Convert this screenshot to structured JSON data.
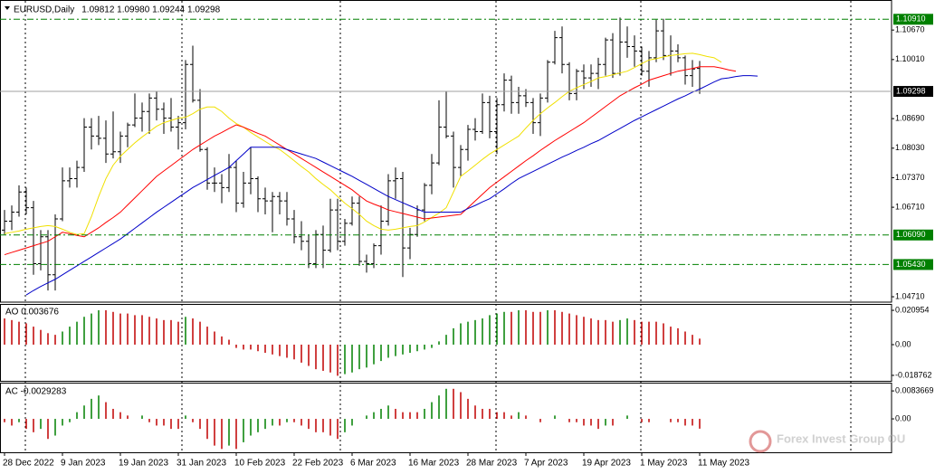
{
  "chart_data": [
    {
      "type": "ohlc",
      "title": "EURUSD,Daily",
      "subtitle": "1.09812 1.09980 1.09244 1.09298",
      "categories": [
        "28 Dec 2022",
        null,
        null,
        null,
        null,
        null,
        null,
        null,
        "9 Jan 2023",
        null,
        null,
        null,
        null,
        null,
        null,
        null,
        "19 Jan 2023",
        null,
        null,
        null,
        null,
        null,
        null,
        null,
        "31 Jan 2023",
        null,
        null,
        null,
        null,
        null,
        null,
        null,
        "10 Feb 2023",
        null,
        null,
        null,
        null,
        null,
        null,
        null,
        "22 Feb 2023",
        null,
        null,
        null,
        null,
        null,
        null,
        null,
        "6 Mar 2023",
        null,
        null,
        null,
        null,
        null,
        null,
        null,
        "16 Mar 2023",
        null,
        null,
        null,
        null,
        null,
        null,
        null,
        "28 Mar 2023",
        null,
        null,
        null,
        null,
        null,
        null,
        null,
        "7 Apr 2023",
        null,
        null,
        null,
        null,
        null,
        null,
        null,
        "19 Apr 2023",
        null,
        null,
        null,
        null,
        null,
        null,
        null,
        "1 May 2023",
        null,
        null,
        null,
        null,
        null,
        null,
        null,
        "11 May 2023",
        null,
        null,
        null,
        null,
        null,
        null,
        null,
        null
      ],
      "open": [
        1.062,
        1.064,
        1.066,
        1.0705,
        1.067,
        1.0545,
        1.0605,
        1.052,
        1.0645,
        1.073,
        1.0735,
        1.076,
        1.085,
        1.083,
        1.0825,
        1.079,
        1.0795,
        1.083,
        1.0855,
        1.087,
        1.0885,
        1.0915,
        1.089,
        1.087,
        1.085,
        1.086,
        1.099,
        1.091,
        1.08,
        1.0725,
        1.0725,
        1.0715,
        1.076,
        1.068,
        1.0725,
        1.0735,
        1.069,
        1.0685,
        1.0695,
        1.0685,
        1.0645,
        1.0605,
        1.0595,
        1.0545,
        1.061,
        1.0575,
        1.0665,
        1.0595,
        1.0635,
        1.068,
        1.055,
        1.0545,
        1.0585,
        1.064,
        1.073,
        1.0735,
        1.058,
        1.061,
        1.0665,
        1.072,
        1.077,
        1.085,
        1.083,
        1.076,
        1.08,
        1.0845,
        1.084,
        1.0905,
        1.084,
        1.09,
        1.0955,
        1.0905,
        1.092,
        1.0905,
        1.086,
        1.0915,
        1.0995,
        1.105,
        1.099,
        1.0925,
        1.0975,
        1.096,
        1.097,
        1.099,
        1.1045,
        1.097,
        1.104,
        1.103,
        1.102,
        1.0975,
        1.1005,
        1.1065,
        1.101,
        1.102,
        1.1005,
        1.0965,
        1.09812,
        null,
        null,
        null,
        null,
        null,
        null,
        null,
        null
      ],
      "high": [
        1.0665,
        1.0675,
        1.072,
        1.0715,
        1.0685,
        1.062,
        1.062,
        1.0655,
        1.076,
        1.076,
        1.0775,
        1.087,
        1.087,
        1.0875,
        1.0865,
        1.0885,
        1.084,
        1.086,
        1.0925,
        1.0905,
        1.0925,
        1.093,
        1.0905,
        1.0915,
        1.0875,
        1.1,
        1.1032,
        1.0935,
        1.0805,
        1.076,
        1.0745,
        1.079,
        1.0775,
        1.075,
        1.0805,
        1.074,
        1.0715,
        1.0705,
        1.0705,
        1.0705,
        1.0665,
        1.064,
        1.061,
        1.062,
        1.063,
        1.069,
        1.069,
        1.0645,
        1.0695,
        1.0695,
        1.0565,
        1.059,
        1.0675,
        1.0745,
        1.076,
        1.075,
        1.0625,
        1.0675,
        1.0725,
        1.079,
        1.091,
        1.093,
        1.084,
        1.081,
        1.0855,
        1.087,
        1.0925,
        1.092,
        1.0915,
        1.097,
        1.0965,
        1.094,
        1.0935,
        1.0915,
        1.0925,
        1.1,
        1.1065,
        1.1075,
        1.0995,
        1.098,
        1.099,
        1.099,
        1.1005,
        1.105,
        1.106,
        1.1095,
        1.1075,
        1.1055,
        1.103,
        1.102,
        1.109,
        1.1092,
        1.1055,
        1.1035,
        1.101,
        1.1,
        1.0998,
        null,
        null,
        null,
        null,
        null,
        null,
        null,
        null
      ],
      "low": [
        1.061,
        1.062,
        1.065,
        1.0655,
        1.052,
        1.053,
        1.0485,
        1.0485,
        1.064,
        1.0715,
        1.0715,
        1.075,
        1.08,
        1.081,
        1.077,
        1.078,
        1.077,
        1.0805,
        1.085,
        1.084,
        1.0835,
        1.0865,
        1.0835,
        1.084,
        1.08,
        1.0845,
        1.0905,
        1.0795,
        1.071,
        1.0705,
        1.068,
        1.0705,
        1.066,
        1.067,
        1.07,
        1.066,
        1.0655,
        1.0615,
        1.0655,
        1.063,
        1.059,
        1.0575,
        1.0535,
        1.0535,
        1.0535,
        1.057,
        1.0575,
        1.0585,
        1.063,
        1.054,
        1.0525,
        1.0535,
        1.0565,
        1.063,
        1.069,
        1.0515,
        1.0555,
        1.0605,
        1.064,
        1.07,
        1.0765,
        1.0825,
        1.0715,
        1.074,
        1.0775,
        1.082,
        1.0835,
        1.0825,
        1.079,
        1.0885,
        1.088,
        1.088,
        1.0895,
        1.0835,
        1.083,
        1.0905,
        1.099,
        1.097,
        1.091,
        1.091,
        1.0935,
        1.094,
        1.0935,
        1.0965,
        1.096,
        1.0965,
        1.1005,
        1.0985,
        1.0965,
        1.094,
        1.0995,
        1.1,
        1.0965,
        1.0995,
        1.0945,
        1.094,
        1.09244,
        null,
        null,
        null,
        null,
        null,
        null,
        null,
        null
      ],
      "close": [
        1.064,
        1.066,
        1.0705,
        1.067,
        1.0545,
        1.0605,
        1.052,
        1.0645,
        1.073,
        1.0735,
        1.076,
        1.085,
        1.083,
        1.0825,
        1.079,
        1.0795,
        1.083,
        1.0855,
        1.087,
        1.0885,
        1.0915,
        1.089,
        1.087,
        1.085,
        1.086,
        1.099,
        1.091,
        1.08,
        1.0725,
        1.0725,
        1.0715,
        1.076,
        1.068,
        1.0725,
        1.0735,
        1.069,
        1.0685,
        1.0695,
        1.0685,
        1.0645,
        1.0605,
        1.0595,
        1.0545,
        1.061,
        1.0575,
        1.0665,
        1.0595,
        1.0635,
        1.068,
        1.055,
        1.0545,
        1.0585,
        1.064,
        1.073,
        1.0735,
        1.058,
        1.061,
        1.0665,
        1.072,
        1.077,
        1.085,
        1.083,
        1.076,
        1.08,
        1.0845,
        1.084,
        1.0905,
        1.084,
        1.09,
        1.0955,
        1.0905,
        1.092,
        1.0905,
        1.086,
        1.0915,
        1.0995,
        1.105,
        1.099,
        1.0925,
        1.0975,
        1.096,
        1.097,
        1.099,
        1.1045,
        1.097,
        1.104,
        1.103,
        1.102,
        1.0975,
        1.1005,
        1.1065,
        1.101,
        1.102,
        1.1005,
        1.0965,
        1.098,
        1.09298,
        null,
        null,
        null,
        null,
        null,
        null,
        null,
        null
      ],
      "color": "#000000",
      "lines": [
        {
          "color": "#f0e000",
          "values": [
            1.0612,
            1.0615,
            1.0618,
            1.0622,
            1.0625,
            1.0628,
            1.063,
            1.0628,
            1.0622,
            1.0615,
            1.061,
            1.0612,
            1.065,
            1.0695,
            1.0735,
            1.0765,
            1.0785,
            1.08,
            1.0815,
            1.0828,
            1.084,
            1.0852,
            1.086,
            1.0865,
            1.087,
            1.0872,
            1.088,
            1.089,
            1.0895,
            1.0895,
            1.0885,
            1.087,
            1.0858,
            1.085,
            1.0838,
            1.0828,
            1.0818,
            1.0808,
            1.08,
            1.0788,
            1.0775,
            1.0762,
            1.075,
            1.0735,
            1.0722,
            1.071,
            1.0695,
            1.068,
            1.0668,
            1.0655,
            1.064,
            1.063,
            1.0622,
            1.062,
            1.0622,
            1.0625,
            1.0628,
            1.063,
            1.0638,
            1.0648,
            1.0658,
            1.067,
            1.0705,
            1.074,
            1.0752,
            1.0765,
            1.0778,
            1.079,
            1.08,
            1.081,
            1.082,
            1.083,
            1.0848,
            1.0865,
            1.088,
            1.0893,
            1.0905,
            1.0918,
            1.093,
            1.0938,
            1.0945,
            1.0952,
            1.096,
            1.0963,
            1.0967,
            1.0971,
            1.0975,
            1.0983,
            1.0992,
            1.1,
            1.1003,
            1.1007,
            1.101,
            1.1012,
            1.1014,
            1.1015,
            1.1012,
            1.1008,
            1.1005,
            1.0995,
            null,
            null,
            null,
            null,
            null
          ]
        },
        {
          "color": "#ff0000",
          "values": [
            1.0565,
            1.057,
            1.0575,
            1.058,
            1.0585,
            1.059,
            1.0595,
            1.0605,
            1.0615,
            1.0612,
            1.0608,
            1.0605,
            1.0615,
            1.0625,
            1.0637,
            1.0648,
            1.066,
            1.0676,
            1.0692,
            1.0708,
            1.0724,
            1.074,
            1.0752,
            1.0764,
            1.0776,
            1.0788,
            1.08,
            1.081,
            1.082,
            1.083,
            1.0838,
            1.0847,
            1.0855,
            1.085,
            1.0843,
            1.0836,
            1.083,
            1.082,
            1.081,
            1.08,
            1.079,
            1.078,
            1.077,
            1.076,
            1.075,
            1.074,
            1.073,
            1.072,
            1.071,
            1.0697,
            1.0685,
            1.0678,
            1.0672,
            1.0665,
            1.0661,
            1.0657,
            1.0653,
            1.0649,
            1.0645,
            1.0647,
            1.0649,
            1.0651,
            1.0653,
            1.0655,
            1.067,
            1.0685,
            1.07,
            1.0715,
            1.0727,
            1.0739,
            1.0751,
            1.0763,
            1.0775,
            1.0786,
            1.0798,
            1.0809,
            1.082,
            1.083,
            1.084,
            1.085,
            1.086,
            1.0872,
            1.0884,
            1.0896,
            1.0908,
            1.092,
            1.0929,
            1.0938,
            1.0946,
            1.0955,
            1.096,
            1.0965,
            1.097,
            1.0975,
            1.0978,
            1.0981,
            1.0985,
            1.0985,
            1.0985,
            1.0982,
            1.0978,
            1.0975,
            null,
            null,
            null
          ]
        },
        {
          "color": "#0000c8",
          "values": [
            null,
            null,
            null,
            1.0475,
            1.0485,
            1.0494,
            1.0502,
            1.051,
            1.052,
            1.053,
            1.054,
            1.055,
            1.056,
            1.057,
            1.058,
            1.059,
            1.06,
            1.0612,
            1.0624,
            1.0636,
            1.0648,
            1.066,
            1.0671,
            1.0682,
            1.0693,
            1.0704,
            1.0715,
            1.0724,
            1.0733,
            1.0742,
            1.0751,
            1.076,
            1.0775,
            1.079,
            1.0805,
            1.0805,
            1.0805,
            1.0805,
            1.0805,
            1.08,
            1.0795,
            1.079,
            1.0785,
            1.078,
            1.0772,
            1.0764,
            1.0756,
            1.0748,
            1.074,
            1.0731,
            1.0722,
            1.0713,
            1.0704,
            1.0695,
            1.0688,
            1.0681,
            1.0674,
            1.0667,
            1.066,
            1.066,
            1.066,
            1.066,
            1.066,
            1.066,
            1.0668,
            1.0675,
            1.0683,
            1.069,
            1.0701,
            1.0712,
            1.0724,
            1.0735,
            1.0743,
            1.0751,
            1.0759,
            1.0767,
            1.0775,
            1.0783,
            1.079,
            1.0798,
            1.0805,
            1.0813,
            1.082,
            1.0829,
            1.0838,
            1.0847,
            1.0856,
            1.0865,
            1.0873,
            1.0881,
            1.0889,
            1.0897,
            1.0905,
            1.0913,
            1.092,
            1.0928,
            1.0935,
            1.0943,
            1.0951,
            1.0958,
            1.096,
            1.0963,
            1.0965,
            1.0965,
            1.0964
          ]
        }
      ],
      "ylim": [
        1.0461,
        1.1128
      ],
      "yticks": [
        {
          "value": 1.1067,
          "label": "1.10670"
        },
        {
          "value": 1.1001,
          "label": "1.10010"
        },
        {
          "value": 1.0869,
          "label": "1.08690"
        },
        {
          "value": 1.0803,
          "label": "1.08030"
        },
        {
          "value": 1.0737,
          "label": "1.07370"
        },
        {
          "value": 1.0671,
          "label": "1.06710"
        },
        {
          "value": 1.0471,
          "label": "1.04710"
        }
      ],
      "levels": [
        {
          "value": 1.1091,
          "label": "1.10910"
        },
        {
          "value": 1.0609,
          "label": "1.06090"
        },
        {
          "value": 1.0543,
          "label": "1.05430"
        }
      ],
      "level_color": "#008000",
      "current_price": {
        "value": 1.09298,
        "label": "1.09298"
      }
    },
    {
      "type": "bar",
      "title": "AO 0.003676",
      "values": [
        0.016,
        0.015,
        0.014,
        0.013,
        0.011,
        0.009,
        0.007,
        0.006,
        0.008,
        0.011,
        0.014,
        0.017,
        0.019,
        0.021,
        0.021,
        0.02,
        0.019,
        0.019,
        0.018,
        0.018,
        0.017,
        0.016,
        0.015,
        0.015,
        0.014,
        0.017,
        0.016,
        0.014,
        0.011,
        0.008,
        0.005,
        0.003,
        -0.002,
        -0.003,
        -0.003,
        -0.004,
        -0.005,
        -0.006,
        -0.007,
        -0.008,
        -0.009,
        -0.011,
        -0.013,
        -0.015,
        -0.016,
        -0.017,
        -0.019,
        -0.018,
        -0.017,
        -0.015,
        -0.014,
        -0.012,
        -0.01,
        -0.008,
        -0.007,
        -0.006,
        -0.005,
        -0.004,
        -0.003,
        -0.002,
        0.002,
        0.006,
        0.01,
        0.013,
        0.014,
        0.015,
        0.016,
        0.018,
        0.019,
        0.02,
        0.02,
        0.021,
        0.021,
        0.02,
        0.02,
        0.021,
        0.021,
        0.02,
        0.019,
        0.018,
        0.017,
        0.016,
        0.015,
        0.015,
        0.014,
        0.015,
        0.016,
        0.015,
        0.014,
        0.014,
        0.014,
        0.013,
        0.011,
        0.01,
        0.008,
        0.006,
        0.003676,
        null,
        null,
        null,
        null,
        null,
        null,
        null,
        null
      ],
      "up_color": "#008000",
      "down_color": "#c00000",
      "ylim": [
        -0.0221,
        0.0243
      ],
      "yticks": [
        0.020954,
        {
          "value": 0,
          "label": "0.00"
        },
        -0.018762
      ]
    },
    {
      "type": "bar",
      "title": "AC -0.0029283",
      "values": [
        -0.001,
        -0.002,
        -0.001,
        -0.003,
        -0.004,
        -0.003,
        -0.006,
        -0.005,
        -0.002,
        -0.001,
        0.002,
        0.004,
        0.006,
        0.007,
        0.005,
        0.003,
        0.002,
        0.001,
        0,
        0.001,
        -0.001,
        -0.002,
        -0.002,
        -0.003,
        -0.003,
        0.001,
        -0.001,
        -0.003,
        -0.006,
        -0.008,
        -0.009,
        -0.008,
        -0.009,
        -0.007,
        -0.005,
        -0.004,
        -0.003,
        -0.002,
        -0.002,
        -0.001,
        -0.001,
        -0.002,
        -0.003,
        -0.004,
        -0.004,
        -0.005,
        -0.006,
        -0.004,
        -0.002,
        0,
        0.001,
        0.002,
        0.003,
        0.004,
        0.003,
        0.002,
        0.002,
        0.002,
        0.003,
        0.005,
        0.007,
        0.009,
        0.009,
        0.008,
        0.006,
        0.004,
        0.003,
        0.003,
        0.002,
        0.002,
        0.001,
        0.002,
        0.001,
        0,
        -0.001,
        0,
        0.001,
        0,
        -0.001,
        -0.001,
        -0.002,
        -0.002,
        -0.003,
        -0.002,
        -0.002,
        0,
        0.001,
        0,
        -0.001,
        -0.001,
        0,
        0,
        -0.001,
        -0.001,
        -0.002,
        -0.002,
        -0.0029283,
        null,
        null,
        null,
        null,
        null,
        null,
        null,
        null
      ],
      "up_color": "#008000",
      "down_color": "#c00000",
      "ylim": [
        -0.01,
        0.0103
      ],
      "yticks": [
        0.0083669,
        {
          "value": 0,
          "label": "0.00"
        }
      ]
    }
  ],
  "watermark": "Forex Invest Group OU"
}
